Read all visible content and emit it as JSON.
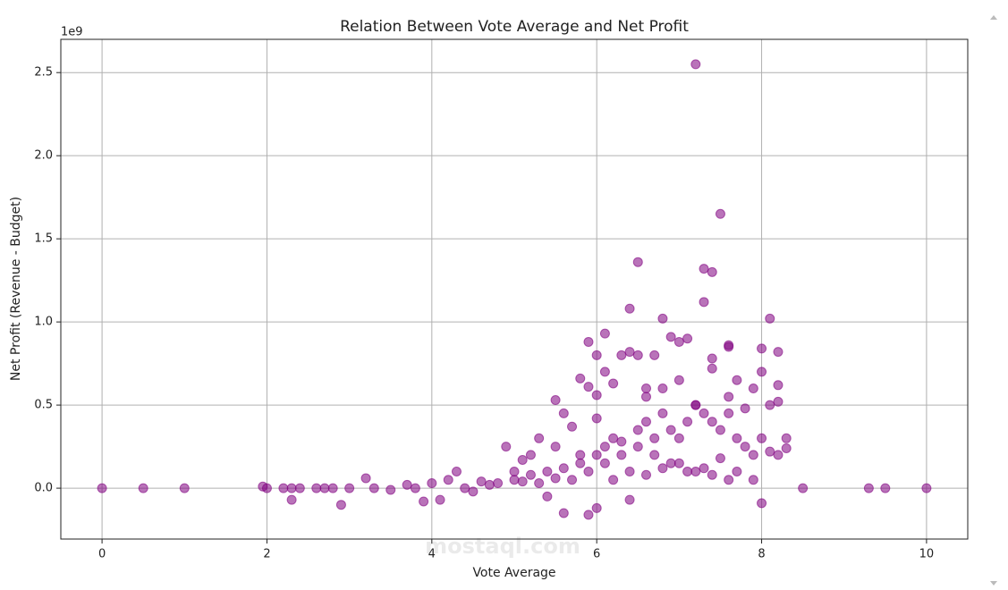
{
  "chart_data": {
    "type": "scatter",
    "title": "Relation Between Vote Average and Net Profit",
    "xlabel": "Vote Average",
    "ylabel": "Net Profit (Revenue - Budget)",
    "y_offset_label": "1e9",
    "watermark": "mostaql.com",
    "color": "#800080",
    "grid": true,
    "xlim": [
      -0.5,
      10.5
    ],
    "ylim": [
      -0.306,
      2.7
    ],
    "xticks": [
      0,
      2,
      4,
      6,
      8,
      10
    ],
    "yticks": [
      {
        "value": 0,
        "label": "0.0"
      },
      0.5,
      {
        "value": 1,
        "label": "1.0"
      },
      1.5,
      {
        "value": 2,
        "label": "2.0"
      },
      2.5
    ],
    "series": [
      {
        "name": "Net Profit",
        "x": [
          0,
          0.5,
          1,
          1.95,
          2,
          2.2,
          2.3,
          2.3,
          2.4,
          2.6,
          2.7,
          2.8,
          2.9,
          3,
          3.2,
          3.3,
          3.5,
          3.7,
          3.8,
          3.9,
          4,
          4.1,
          4.2,
          4.3,
          4.4,
          4.5,
          4.6,
          4.8,
          4.9,
          5,
          5.1,
          5.2,
          5.3,
          5.4,
          5.5,
          5.6,
          5.5,
          5.7,
          5.8,
          5.8,
          5.9,
          6,
          5.9,
          6,
          6.1,
          6,
          6.1,
          6.2,
          6.3,
          6.4,
          6.4,
          6.5,
          6.5,
          6.6,
          6.7,
          6.8,
          6.9,
          7,
          7.1,
          7.2,
          7.3,
          7.3,
          7.4,
          7.5,
          7.4,
          7.6,
          7.6,
          7.7,
          7.9,
          8,
          8.1,
          8,
          8.2,
          8.2,
          8.1,
          8.3,
          8.5,
          9.3,
          9.5,
          10,
          5.6,
          5.9,
          6,
          6.4,
          8,
          5,
          5.2,
          5.4,
          5.6,
          5.8,
          6,
          6.1,
          6.2,
          6.3,
          6.5,
          6.6,
          6.7,
          6.8,
          6.9,
          7,
          7.1,
          7.2,
          7.3,
          7.4,
          7.5,
          7.6,
          7.7,
          7.8,
          7.9,
          8,
          8.1,
          8.2,
          5.7,
          5.9,
          6.1,
          6.3,
          6.5,
          6.7,
          6.9,
          7.1,
          7.3,
          7.5,
          7.7,
          7.9,
          6.2,
          6.4,
          6.6,
          6.8,
          7,
          7.2,
          7.4,
          7.6,
          6.6,
          6.8,
          7,
          7.2,
          7.4,
          7.6,
          7.8,
          8.2,
          8.3,
          4.7,
          5.1,
          5.3,
          5.5
        ],
        "values": [
          0,
          0,
          0,
          0.01,
          0,
          0,
          -0.07,
          0,
          0,
          0,
          0,
          0,
          -0.1,
          0,
          0.06,
          0,
          -0.01,
          0.02,
          0,
          -0.08,
          0.03,
          -0.07,
          0.05,
          0.1,
          0,
          -0.02,
          0.04,
          0.03,
          0.25,
          0.1,
          0.17,
          0.2,
          0.3,
          -0.05,
          0.25,
          0.45,
          0.53,
          0.37,
          0.66,
          0.2,
          0.61,
          0.56,
          0.88,
          0.8,
          0.93,
          0.42,
          0.7,
          0.63,
          0.8,
          0.82,
          1.08,
          1.36,
          0.8,
          0.6,
          0.8,
          1.02,
          0.91,
          0.88,
          0.9,
          2.55,
          1.32,
          1.12,
          1.3,
          1.65,
          0.78,
          0.86,
          0.85,
          0.65,
          0.6,
          0.84,
          1.02,
          0.7,
          0.82,
          0.62,
          0.5,
          0.24,
          0,
          0,
          0,
          0,
          -0.15,
          -0.16,
          -0.12,
          -0.07,
          -0.09,
          0.05,
          0.08,
          0.1,
          0.12,
          0.15,
          0.2,
          0.25,
          0.3,
          0.28,
          0.35,
          0.4,
          0.3,
          0.45,
          0.35,
          0.3,
          0.4,
          0.5,
          0.45,
          0.4,
          0.35,
          0.45,
          0.3,
          0.25,
          0.2,
          0.3,
          0.22,
          0.2,
          0.05,
          0.1,
          0.15,
          0.2,
          0.25,
          0.2,
          0.15,
          0.1,
          0.12,
          0.18,
          0.1,
          0.05,
          0.05,
          0.1,
          0.08,
          0.12,
          0.15,
          0.1,
          0.08,
          0.05,
          0.55,
          0.6,
          0.65,
          0.5,
          0.72,
          0.55,
          0.48,
          0.52,
          0.3,
          0.02,
          0.04,
          0.03,
          0.06
        ]
      }
    ]
  }
}
